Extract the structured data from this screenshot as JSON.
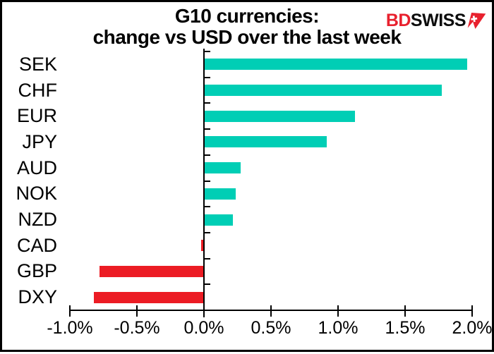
{
  "title": {
    "line1": "G10 currencies:",
    "line2": "change vs USD over the last week"
  },
  "logo": {
    "text_red": "BD",
    "text_black": "SWISS",
    "arrow_icon": "red-pennant-arrow-with-swiss-cross",
    "red_color": "#e8212e",
    "black_color": "#0d0d0d"
  },
  "chart_data": {
    "type": "bar",
    "orientation": "horizontal",
    "title": "G10 currencies: change vs USD over the last week",
    "categories": [
      "SEK",
      "CHF",
      "EUR",
      "JPY",
      "AUD",
      "NOK",
      "NZD",
      "CAD",
      "GBP",
      "DXY"
    ],
    "values": [
      1.96,
      1.77,
      1.12,
      0.91,
      0.27,
      0.23,
      0.21,
      -0.02,
      -0.78,
      -0.82
    ],
    "value_unit": "%",
    "positive_color": "#00ceb5",
    "negative_color": "#ec1c24",
    "axis_color": "#000000",
    "xlim": [
      -1.0,
      2.0
    ],
    "x_tick_step": 0.5,
    "x_tick_labels": [
      "-1.0%",
      "-0.5%",
      "0.0%",
      "0.5%",
      "1.0%",
      "1.5%",
      "2.0%"
    ],
    "grid": false,
    "legend": "none"
  }
}
